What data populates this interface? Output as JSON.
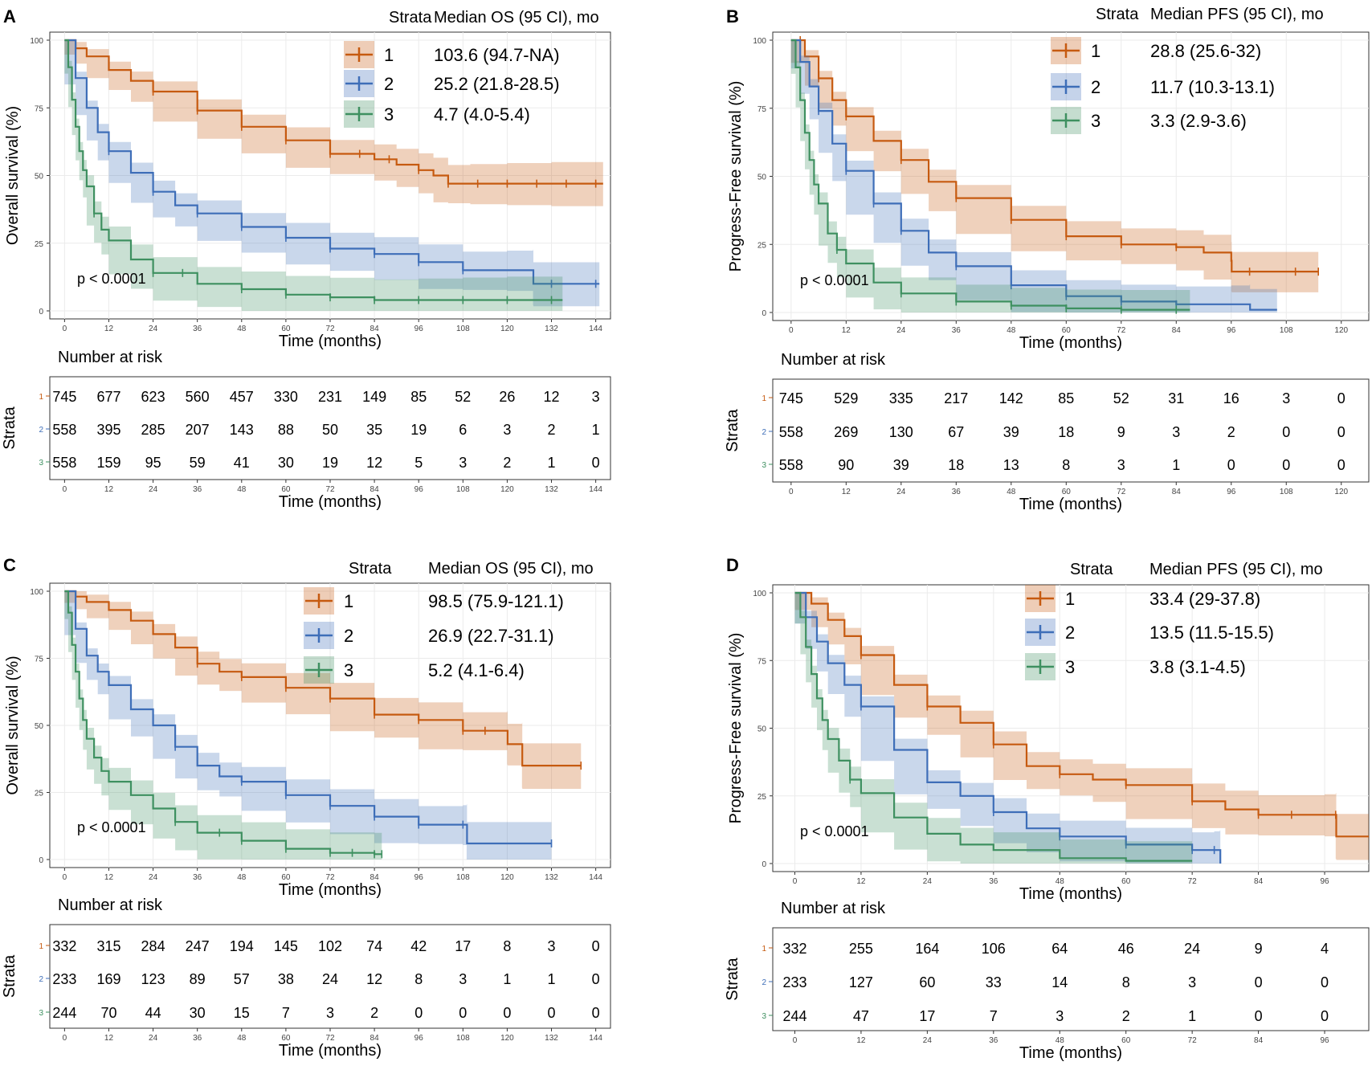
{
  "colors": {
    "stratum1": "#C65A10",
    "stratum2": "#3E6EB8",
    "stratum3": "#3E9060",
    "grid": "#EBEBEB",
    "axis": "#333333"
  },
  "common": {
    "strata_title": "Strata",
    "p_value": "p < 0.0001",
    "risk_title": "Number at risk",
    "risk_ylabel": "Strata",
    "xlabel": "Time (months)"
  },
  "chart_data": [
    {
      "panel": "A",
      "type": "line",
      "subtype": "kaplan-meier",
      "ylabel": "Overall survival (%)",
      "xlabel": "Time (months)",
      "legend_title_median": "Median OS (95 CI), mo",
      "xlim": [
        -4,
        148
      ],
      "ylim": [
        0,
        100
      ],
      "xticks": [
        0,
        12,
        24,
        36,
        48,
        60,
        72,
        84,
        96,
        108,
        120,
        132,
        144
      ],
      "yticks": [
        0,
        25,
        50,
        75,
        100
      ],
      "legend": [
        {
          "stratum": "1",
          "median": "103.6",
          "ci": "(94.7-NA)"
        },
        {
          "stratum": "2",
          "median": "25.2",
          "ci": "(21.8-28.5)"
        },
        {
          "stratum": "3",
          "median": "4.7",
          "ci": "(4.0-5.4)"
        }
      ],
      "series": [
        {
          "name": "1",
          "x": [
            0,
            3,
            6,
            12,
            18,
            24,
            36,
            48,
            60,
            72,
            84,
            90,
            96,
            100,
            104,
            110,
            120,
            132,
            146
          ],
          "y": [
            100,
            97,
            94,
            89,
            85,
            81,
            74,
            68,
            63,
            58,
            56,
            54,
            52,
            50,
            47,
            47,
            47,
            47,
            47
          ],
          "censor_x": [
            24,
            36,
            48,
            60,
            72,
            80,
            88,
            96,
            104,
            112,
            120,
            128,
            136,
            144
          ]
        },
        {
          "name": "2",
          "x": [
            0,
            3,
            6,
            9,
            12,
            18,
            24,
            30,
            36,
            48,
            60,
            72,
            84,
            96,
            108,
            120,
            127,
            127.1,
            145
          ],
          "y": [
            100,
            86,
            75,
            66,
            59,
            51,
            44,
            39,
            36,
            31,
            27,
            23,
            21,
            18,
            15,
            15,
            15,
            10,
            10
          ],
          "censor_x": [
            12,
            24,
            36,
            48,
            60,
            72,
            84,
            96,
            108,
            132,
            144
          ]
        },
        {
          "name": "3",
          "x": [
            0,
            1,
            2,
            3,
            4,
            5,
            6,
            8,
            10,
            12,
            18,
            24,
            36,
            48,
            60,
            72,
            84,
            96,
            108,
            120,
            135
          ],
          "y": [
            100,
            90,
            78,
            68,
            59,
            52,
            46,
            36,
            30,
            26,
            19,
            14,
            10,
            8,
            6,
            5,
            4,
            4,
            4,
            4,
            4
          ],
          "censor_x": [
            8,
            24,
            32,
            48,
            60,
            72,
            84,
            96,
            108,
            120,
            132
          ]
        }
      ],
      "risk_times": [
        0,
        12,
        24,
        36,
        48,
        60,
        72,
        84,
        96,
        108,
        120,
        132,
        144
      ],
      "risk_table": [
        [
          "745",
          "677",
          "623",
          "560",
          "457",
          "330",
          "231",
          "149",
          "85",
          "52",
          "26",
          "12",
          "3"
        ],
        [
          "558",
          "395",
          "285",
          "207",
          "143",
          "88",
          "50",
          "35",
          "19",
          "6",
          "3",
          "2",
          "1"
        ],
        [
          "558",
          "159",
          "95",
          "59",
          "41",
          "30",
          "19",
          "12",
          "5",
          "3",
          "2",
          "1",
          "0"
        ]
      ]
    },
    {
      "panel": "B",
      "type": "line",
      "subtype": "kaplan-meier",
      "ylabel": "Progress-Free survival (%)",
      "xlabel": "Time (months)",
      "legend_title_median": "Median PFS (95 CI), mo",
      "xlim": [
        -4,
        126
      ],
      "ylim": [
        0,
        100
      ],
      "xticks": [
        0,
        12,
        24,
        36,
        48,
        60,
        72,
        84,
        96,
        108,
        120
      ],
      "yticks": [
        0,
        25,
        50,
        75,
        100
      ],
      "legend": [
        {
          "stratum": "1",
          "median": "28.8",
          "ci": "(25.6-32)"
        },
        {
          "stratum": "2",
          "median": "11.7",
          "ci": "(10.3-13.1)"
        },
        {
          "stratum": "3",
          "median": "3.3",
          "ci": "(2.9-3.6)"
        }
      ],
      "series": [
        {
          "name": "1",
          "x": [
            0,
            3,
            6,
            9,
            12,
            18,
            24,
            30,
            36,
            48,
            60,
            72,
            84,
            90,
            96,
            96.1,
            115
          ],
          "y": [
            100,
            94,
            86,
            78,
            72,
            63,
            56,
            48,
            42,
            34,
            28,
            25,
            24,
            22,
            19,
            15,
            15
          ],
          "censor_x": [
            2,
            6,
            12,
            24,
            36,
            48,
            60,
            72,
            84,
            100,
            110,
            115
          ]
        },
        {
          "name": "2",
          "x": [
            0,
            2,
            4,
            6,
            9,
            12,
            18,
            24,
            30,
            36,
            48,
            60,
            72,
            84,
            96,
            100,
            100.1,
            106
          ],
          "y": [
            100,
            92,
            83,
            74,
            62,
            52,
            40,
            30,
            22,
            17,
            10,
            6,
            4,
            3,
            3,
            3,
            1,
            1
          ],
          "censor_x": [
            6,
            12,
            18,
            24,
            36,
            48,
            60,
            72,
            84
          ]
        },
        {
          "name": "3",
          "x": [
            0,
            1,
            2,
            3,
            4,
            5,
            6,
            8,
            10,
            12,
            18,
            24,
            36,
            48,
            60,
            72,
            87
          ],
          "y": [
            100,
            90,
            78,
            66,
            56,
            47,
            40,
            29,
            23,
            18,
            11,
            7,
            4,
            2.5,
            1.5,
            1,
            1
          ],
          "censor_x": [
            10,
            24,
            36,
            48,
            60,
            72,
            84
          ]
        }
      ],
      "risk_times": [
        0,
        12,
        24,
        36,
        48,
        60,
        72,
        84,
        96,
        108,
        120
      ],
      "risk_table": [
        [
          "745",
          "529",
          "335",
          "217",
          "142",
          "85",
          "52",
          "31",
          "16",
          "3",
          "0"
        ],
        [
          "558",
          "269",
          "130",
          "67",
          "39",
          "18",
          "9",
          "3",
          "2",
          "0",
          "0"
        ],
        [
          "558",
          "90",
          "39",
          "18",
          "13",
          "8",
          "3",
          "1",
          "0",
          "0",
          "0"
        ]
      ]
    },
    {
      "panel": "C",
      "type": "line",
      "subtype": "kaplan-meier",
      "ylabel": "Overall survival (%)",
      "xlabel": "Time (months)",
      "legend_title_median": "Median OS (95 CI), mo",
      "xlim": [
        -4,
        148
      ],
      "ylim": [
        0,
        100
      ],
      "xticks": [
        0,
        12,
        24,
        36,
        48,
        60,
        72,
        84,
        96,
        108,
        120,
        132,
        144
      ],
      "yticks": [
        0,
        25,
        50,
        75,
        100
      ],
      "legend": [
        {
          "stratum": "1",
          "median": "98.5",
          "ci": "(75.9-121.1)"
        },
        {
          "stratum": "2",
          "median": "26.9",
          "ci": "(22.7-31.1)"
        },
        {
          "stratum": "3",
          "median": "5.2",
          "ci": "(4.1-6.4)"
        }
      ],
      "series": [
        {
          "name": "1",
          "x": [
            0,
            3,
            6,
            12,
            18,
            24,
            30,
            36,
            42,
            48,
            60,
            72,
            84,
            96,
            108,
            120,
            120.1,
            124,
            124.1,
            140
          ],
          "y": [
            100,
            98,
            96,
            93,
            89,
            84,
            79,
            73,
            70,
            68,
            64,
            60,
            54,
            52,
            48,
            48,
            43,
            43,
            35,
            35
          ],
          "censor_x": [
            36,
            48,
            60,
            72,
            84,
            96,
            108,
            114,
            140
          ]
        },
        {
          "name": "2",
          "x": [
            0,
            3,
            6,
            9,
            12,
            18,
            24,
            30,
            36,
            42,
            48,
            60,
            72,
            84,
            96,
            108,
            109,
            109.1,
            132
          ],
          "y": [
            100,
            86,
            76,
            70,
            65,
            56,
            50,
            42,
            35,
            31,
            29,
            24,
            20,
            16,
            13,
            13,
            13,
            6,
            6
          ],
          "censor_x": [
            30,
            48,
            60,
            72,
            84,
            96,
            108,
            132
          ]
        },
        {
          "name": "3",
          "x": [
            0,
            1,
            2,
            3,
            4,
            5,
            6,
            8,
            10,
            12,
            18,
            24,
            30,
            36,
            48,
            60,
            72,
            84,
            86
          ],
          "y": [
            100,
            92,
            80,
            70,
            60,
            52,
            45,
            38,
            33,
            29,
            24,
            19,
            14,
            10,
            7,
            4,
            2.5,
            2,
            2
          ],
          "censor_x": [
            30,
            42,
            48,
            60,
            72,
            78,
            84,
            86
          ]
        }
      ],
      "risk_times": [
        0,
        12,
        24,
        36,
        48,
        60,
        72,
        84,
        96,
        108,
        120,
        132,
        144
      ],
      "risk_table": [
        [
          "332",
          "315",
          "284",
          "247",
          "194",
          "145",
          "102",
          "74",
          "42",
          "17",
          "8",
          "3",
          "0"
        ],
        [
          "233",
          "169",
          "123",
          "89",
          "57",
          "38",
          "24",
          "12",
          "8",
          "3",
          "1",
          "1",
          "0"
        ],
        [
          "244",
          "70",
          "44",
          "30",
          "15",
          "7",
          "3",
          "2",
          "0",
          "0",
          "0",
          "0",
          "0"
        ]
      ]
    },
    {
      "panel": "D",
      "type": "line",
      "subtype": "kaplan-meier",
      "ylabel": "Progress-Free survival (%)",
      "xlabel": "Time (months)",
      "legend_title_median": "Median PFS (95 CI), mo",
      "xlim": [
        -4,
        104
      ],
      "ylim": [
        0,
        100
      ],
      "xticks": [
        0,
        12,
        24,
        36,
        48,
        60,
        72,
        84,
        96
      ],
      "yticks": [
        0,
        25,
        50,
        75,
        100
      ],
      "legend": [
        {
          "stratum": "1",
          "median": "33.4",
          "ci": "(29-37.8)"
        },
        {
          "stratum": "2",
          "median": "13.5",
          "ci": "(11.5-15.5)"
        },
        {
          "stratum": "3",
          "median": "3.8",
          "ci": "(3.1-4.5)"
        }
      ],
      "series": [
        {
          "name": "1",
          "x": [
            0,
            3,
            6,
            9,
            12,
            18,
            24,
            30,
            36,
            42,
            48,
            54,
            60,
            72,
            78,
            84,
            96,
            98,
            98.1,
            104
          ],
          "y": [
            100,
            96,
            90,
            84,
            77,
            66,
            58,
            52,
            44,
            36,
            33,
            31,
            29,
            23,
            20,
            18,
            18,
            18,
            10,
            10
          ],
          "censor_x": [
            12,
            24,
            36,
            48,
            60,
            72,
            84,
            90,
            98
          ]
        },
        {
          "name": "2",
          "x": [
            0,
            2,
            4,
            6,
            9,
            12,
            18,
            24,
            30,
            36,
            42,
            48,
            60,
            72,
            76,
            77,
            77.1
          ],
          "y": [
            100,
            91,
            82,
            74,
            66,
            58,
            42,
            30,
            25,
            19,
            13,
            10,
            7,
            5,
            5,
            5,
            0
          ],
          "censor_x": [
            12,
            36,
            48,
            60,
            72,
            76
          ]
        },
        {
          "name": "3",
          "x": [
            0,
            1,
            2,
            3,
            4,
            5,
            6,
            8,
            10,
            12,
            18,
            24,
            30,
            36,
            48,
            60,
            72
          ],
          "y": [
            100,
            91,
            80,
            70,
            61,
            53,
            46,
            38,
            31,
            26,
            17,
            11,
            7,
            5,
            2,
            1,
            1
          ],
          "censor_x": [
            10
          ]
        }
      ],
      "risk_times": [
        0,
        12,
        24,
        36,
        48,
        60,
        72,
        84,
        96
      ],
      "risk_table": [
        [
          "332",
          "255",
          "164",
          "106",
          "64",
          "46",
          "24",
          "9",
          "4"
        ],
        [
          "233",
          "127",
          "60",
          "33",
          "14",
          "8",
          "3",
          "0",
          "0"
        ],
        [
          "244",
          "47",
          "17",
          "7",
          "3",
          "2",
          "1",
          "0",
          "0"
        ]
      ]
    }
  ]
}
